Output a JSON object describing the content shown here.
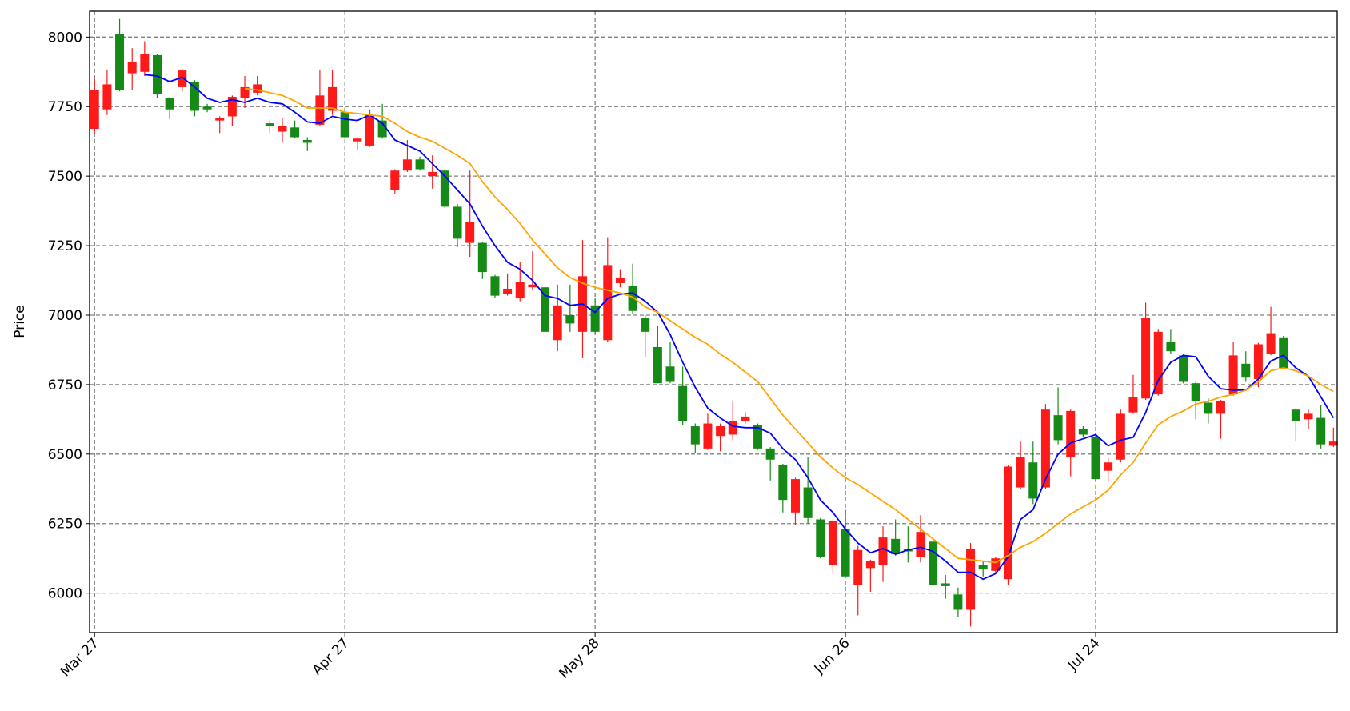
{
  "chart_data": {
    "type": "candlestick",
    "y_label": "Price",
    "categories": [
      "Mar 27",
      null,
      null,
      null,
      null,
      null,
      null,
      null,
      null,
      null,
      null,
      null,
      null,
      null,
      null,
      null,
      null,
      null,
      null,
      null,
      "Apr 27",
      null,
      null,
      null,
      null,
      null,
      null,
      null,
      null,
      null,
      null,
      null,
      null,
      null,
      null,
      null,
      null,
      null,
      null,
      null,
      "May 28",
      null,
      null,
      null,
      null,
      null,
      null,
      null,
      null,
      null,
      null,
      null,
      null,
      null,
      null,
      null,
      null,
      null,
      null,
      null,
      "Jun 26",
      null,
      null,
      null,
      null,
      null,
      null,
      null,
      null,
      null,
      null,
      null,
      null,
      null,
      null,
      null,
      null,
      null,
      null,
      null,
      "Jul 24",
      null,
      null,
      null,
      null,
      null,
      null,
      null,
      null,
      null,
      null,
      null,
      null,
      null,
      null,
      null,
      null,
      null,
      null,
      null
    ],
    "open": [
      7670,
      7740,
      8010,
      7870,
      7875,
      7935,
      7780,
      7820,
      7840,
      7750,
      7700,
      7715,
      7780,
      7800,
      7690,
      7660,
      7675,
      7630,
      7685,
      7735,
      7730,
      7625,
      7610,
      7700,
      7450,
      7520,
      7560,
      7500,
      7520,
      7390,
      7260,
      7260,
      7140,
      7075,
      7060,
      7100,
      7100,
      6910,
      7000,
      6940,
      7035,
      6910,
      7115,
      7105,
      6990,
      6885,
      6815,
      6745,
      6600,
      6520,
      6565,
      6570,
      6620,
      6605,
      6520,
      6460,
      6290,
      6380,
      6265,
      6100,
      6230,
      6030,
      6090,
      6100,
      6195,
      6160,
      6130,
      6185,
      6035,
      5995,
      5940,
      6100,
      6080,
      6050,
      6380,
      6470,
      6380,
      6640,
      6490,
      6590,
      6560,
      6440,
      6480,
      6650,
      6700,
      6715,
      6905,
      6855,
      6755,
      6685,
      6645,
      6715,
      6825,
      6770,
      6860,
      6920,
      6660,
      6625,
      6630,
      6530
    ],
    "high": [
      7850,
      7880,
      8065,
      7960,
      7985,
      7940,
      7785,
      7885,
      7845,
      7760,
      7715,
      7790,
      7860,
      7860,
      7700,
      7710,
      7700,
      7640,
      7880,
      7880,
      7735,
      7640,
      7740,
      7760,
      7525,
      7630,
      7570,
      7575,
      7525,
      7400,
      7520,
      7265,
      7145,
      7150,
      7190,
      7230,
      7105,
      7110,
      7110,
      7270,
      7060,
      7280,
      7165,
      7185,
      7000,
      6960,
      6905,
      6815,
      6610,
      6645,
      6610,
      6690,
      6650,
      6610,
      6525,
      6465,
      6415,
      6490,
      6270,
      6265,
      6300,
      6170,
      6120,
      6240,
      6265,
      6240,
      6280,
      6190,
      6065,
      6020,
      6180,
      6115,
      6130,
      6460,
      6545,
      6545,
      6680,
      6740,
      6660,
      6600,
      6575,
      6490,
      6660,
      6785,
      7045,
      6950,
      6950,
      6860,
      6760,
      6700,
      6695,
      6905,
      6870,
      6900,
      7030,
      6925,
      6665,
      6660,
      6675,
      6595
    ],
    "low": [
      7650,
      7720,
      7805,
      7810,
      7860,
      7780,
      7705,
      7805,
      7715,
      7730,
      7655,
      7680,
      7745,
      7790,
      7655,
      7620,
      7635,
      7590,
      7680,
      7720,
      7635,
      7595,
      7605,
      7635,
      7435,
      7515,
      7520,
      7455,
      7385,
      7245,
      7210,
      7130,
      7060,
      7070,
      7050,
      7090,
      6940,
      6870,
      6940,
      6845,
      6935,
      6905,
      7100,
      7005,
      6850,
      6755,
      6755,
      6605,
      6505,
      6515,
      6510,
      6550,
      6610,
      6515,
      6405,
      6290,
      6245,
      6250,
      6125,
      6070,
      6060,
      5920,
      6005,
      6040,
      6135,
      6110,
      6110,
      6025,
      5980,
      5915,
      5880,
      6060,
      6070,
      6030,
      6375,
      6320,
      6375,
      6535,
      6420,
      6560,
      6405,
      6400,
      6470,
      6645,
      6695,
      6710,
      6860,
      6755,
      6625,
      6610,
      6555,
      6710,
      6760,
      6740,
      6855,
      6805,
      6545,
      6590,
      6520,
      6525
    ],
    "close": [
      7810,
      7830,
      7810,
      7910,
      7940,
      7795,
      7740,
      7880,
      7735,
      7740,
      7710,
      7785,
      7820,
      7830,
      7680,
      7680,
      7640,
      7620,
      7790,
      7820,
      7640,
      7635,
      7720,
      7640,
      7520,
      7560,
      7525,
      7515,
      7390,
      7275,
      7335,
      7155,
      7070,
      7095,
      7120,
      7110,
      6940,
      7035,
      6970,
      7140,
      6940,
      7180,
      7135,
      7015,
      6940,
      6755,
      6760,
      6620,
      6535,
      6610,
      6600,
      6620,
      6635,
      6520,
      6480,
      6335,
      6410,
      6270,
      6130,
      6260,
      6060,
      6155,
      6115,
      6200,
      6140,
      6150,
      6220,
      6030,
      6025,
      5940,
      6160,
      6085,
      6125,
      6455,
      6490,
      6340,
      6660,
      6550,
      6655,
      6570,
      6410,
      6470,
      6645,
      6705,
      6990,
      6940,
      6870,
      6760,
      6690,
      6645,
      6690,
      6855,
      6775,
      6895,
      6935,
      6810,
      6620,
      6645,
      6535,
      6545
    ],
    "up_color": "#ff1a1a",
    "down_color": "#168a16",
    "lines": [
      {
        "color": "#0000ff",
        "values": [
          null,
          null,
          null,
          null,
          7865,
          7860,
          7840,
          7855,
          7820,
          7780,
          7765,
          7775,
          7765,
          7780,
          7765,
          7760,
          7730,
          7695,
          7690,
          7715,
          7705,
          7700,
          7720,
          7690,
          7630,
          7610,
          7590,
          7545,
          7500,
          7450,
          7400,
          7320,
          7250,
          7190,
          7165,
          7125,
          7070,
          7060,
          7035,
          7040,
          7010,
          7060,
          7075,
          7080,
          7050,
          7010,
          6930,
          6830,
          6740,
          6665,
          6630,
          6600,
          6595,
          6595,
          6575,
          6520,
          6480,
          6415,
          6335,
          6290,
          6230,
          6180,
          6145,
          6160,
          6140,
          6155,
          6165,
          6150,
          6115,
          6075,
          6075,
          6050,
          6070,
          6130,
          6265,
          6300,
          6410,
          6500,
          6540,
          6555,
          6570,
          6530,
          6550,
          6560,
          6650,
          6765,
          6830,
          6855,
          6850,
          6780,
          6735,
          6730,
          6730,
          6770,
          6835,
          6855,
          6810,
          6780,
          6705,
          6630
        ]
      },
      {
        "color": "#ffa500",
        "values": [
          null,
          null,
          null,
          null,
          null,
          null,
          null,
          null,
          null,
          null,
          null,
          null,
          7815,
          7810,
          7800,
          7790,
          7770,
          7745,
          7745,
          7745,
          7730,
          7725,
          7720,
          7715,
          7690,
          7660,
          7640,
          7625,
          7600,
          7575,
          7545,
          7480,
          7425,
          7380,
          7330,
          7270,
          7220,
          7170,
          7135,
          7115,
          7100,
          7090,
          7080,
          7065,
          7030,
          7010,
          6980,
          6950,
          6920,
          6895,
          6860,
          6830,
          6795,
          6760,
          6700,
          6640,
          6590,
          6540,
          6490,
          6450,
          6415,
          6390,
          6360,
          6330,
          6300,
          6265,
          6230,
          6195,
          6160,
          6125,
          6120,
          6115,
          6110,
          6135,
          6165,
          6185,
          6215,
          6250,
          6285,
          6310,
          6335,
          6370,
          6425,
          6470,
          6540,
          6605,
          6635,
          6655,
          6680,
          6690,
          6705,
          6715,
          6730,
          6760,
          6800,
          6810,
          6800,
          6780,
          6750,
          6725
        ]
      }
    ],
    "ylim": [
      5858,
      8093
    ],
    "yticks": [
      6000,
      6250,
      6500,
      6750,
      7000,
      7250,
      7500,
      7750,
      8000
    ],
    "grid": true
  }
}
